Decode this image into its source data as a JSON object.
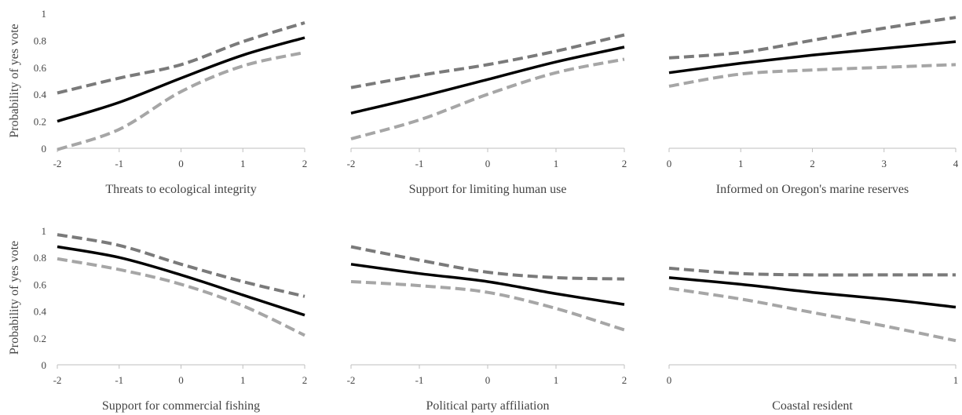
{
  "chart_data": [
    {
      "type": "line",
      "xlabel": "Threats to ecological integrity",
      "ylabel": "Probability of yes vote",
      "xlim": [
        -2,
        2
      ],
      "ylim": [
        0,
        1
      ],
      "xticks": [
        "-2",
        "-1",
        "0",
        "1",
        "2"
      ],
      "yticks": [
        "0",
        "0.2",
        "0.4",
        "0.6",
        "0.8",
        "1"
      ],
      "x": [
        -2,
        -1,
        0,
        1,
        2
      ],
      "series": [
        {
          "role": "upper",
          "values": [
            0.41,
            0.52,
            0.62,
            0.79,
            0.93
          ]
        },
        {
          "role": "estimate",
          "values": [
            0.2,
            0.34,
            0.52,
            0.69,
            0.82
          ]
        },
        {
          "role": "lower",
          "values": [
            -0.01,
            0.14,
            0.42,
            0.61,
            0.71
          ]
        }
      ]
    },
    {
      "type": "line",
      "xlabel": "Support for limiting human use",
      "ylabel": "",
      "xlim": [
        -2,
        2
      ],
      "ylim": [
        0,
        1
      ],
      "xticks": [
        "-2",
        "-1",
        "0",
        "1",
        "2"
      ],
      "yticks": [],
      "x": [
        -2,
        -1,
        0,
        1,
        2
      ],
      "series": [
        {
          "role": "upper",
          "values": [
            0.45,
            0.54,
            0.62,
            0.72,
            0.84
          ]
        },
        {
          "role": "estimate",
          "values": [
            0.26,
            0.38,
            0.51,
            0.64,
            0.75
          ]
        },
        {
          "role": "lower",
          "values": [
            0.07,
            0.21,
            0.4,
            0.56,
            0.66
          ]
        }
      ]
    },
    {
      "type": "line",
      "xlabel": "Informed on Oregon's marine reserves",
      "ylabel": "",
      "xlim": [
        0,
        4
      ],
      "ylim": [
        0,
        1
      ],
      "xticks": [
        "0",
        "1",
        "2",
        "3",
        "4"
      ],
      "yticks": [],
      "x": [
        0,
        1,
        2,
        3,
        4
      ],
      "series": [
        {
          "role": "upper",
          "values": [
            0.67,
            0.71,
            0.8,
            0.89,
            0.97
          ]
        },
        {
          "role": "estimate",
          "values": [
            0.56,
            0.63,
            0.69,
            0.74,
            0.79
          ]
        },
        {
          "role": "lower",
          "values": [
            0.46,
            0.55,
            0.58,
            0.6,
            0.62
          ]
        }
      ]
    },
    {
      "type": "line",
      "xlabel": "Support for commercial fishing",
      "ylabel": "Probability of yes vote",
      "xlim": [
        -2,
        2
      ],
      "ylim": [
        0,
        1
      ],
      "xticks": [
        "-2",
        "-1",
        "0",
        "1",
        "2"
      ],
      "yticks": [
        "0",
        "0.2",
        "0.4",
        "0.6",
        "0.8",
        "1"
      ],
      "x": [
        -2,
        -1,
        0,
        1,
        2
      ],
      "series": [
        {
          "role": "upper",
          "values": [
            0.97,
            0.89,
            0.75,
            0.62,
            0.51
          ]
        },
        {
          "role": "estimate",
          "values": [
            0.88,
            0.8,
            0.67,
            0.52,
            0.37
          ]
        },
        {
          "role": "lower",
          "values": [
            0.79,
            0.71,
            0.6,
            0.44,
            0.22
          ]
        }
      ]
    },
    {
      "type": "line",
      "xlabel": "Political party affiliation",
      "ylabel": "",
      "xlim": [
        -2,
        2
      ],
      "ylim": [
        0,
        1
      ],
      "xticks": [
        "-2",
        "-1",
        "0",
        "1",
        "2"
      ],
      "yticks": [],
      "x": [
        -2,
        -1,
        0,
        1,
        2
      ],
      "series": [
        {
          "role": "upper",
          "values": [
            0.88,
            0.78,
            0.69,
            0.65,
            0.64
          ]
        },
        {
          "role": "estimate",
          "values": [
            0.75,
            0.68,
            0.62,
            0.53,
            0.45
          ]
        },
        {
          "role": "lower",
          "values": [
            0.62,
            0.59,
            0.54,
            0.42,
            0.26
          ]
        }
      ]
    },
    {
      "type": "line",
      "xlabel": "Coastal resident",
      "ylabel": "",
      "xlim": [
        0,
        1
      ],
      "ylim": [
        0,
        1
      ],
      "xticks": [
        "0",
        "1"
      ],
      "yticks": [],
      "x": [
        0,
        0.25,
        0.5,
        0.75,
        1
      ],
      "series": [
        {
          "role": "upper",
          "values": [
            0.72,
            0.68,
            0.67,
            0.67,
            0.67
          ]
        },
        {
          "role": "estimate",
          "values": [
            0.65,
            0.6,
            0.54,
            0.49,
            0.43
          ]
        },
        {
          "role": "lower",
          "values": [
            0.57,
            0.49,
            0.39,
            0.29,
            0.18
          ]
        }
      ]
    }
  ],
  "colors": {
    "upper": "#7a7a7a",
    "estimate": "#000000",
    "lower": "#a6a6a6",
    "axis": "#bfbfbf",
    "text": "#444444"
  }
}
